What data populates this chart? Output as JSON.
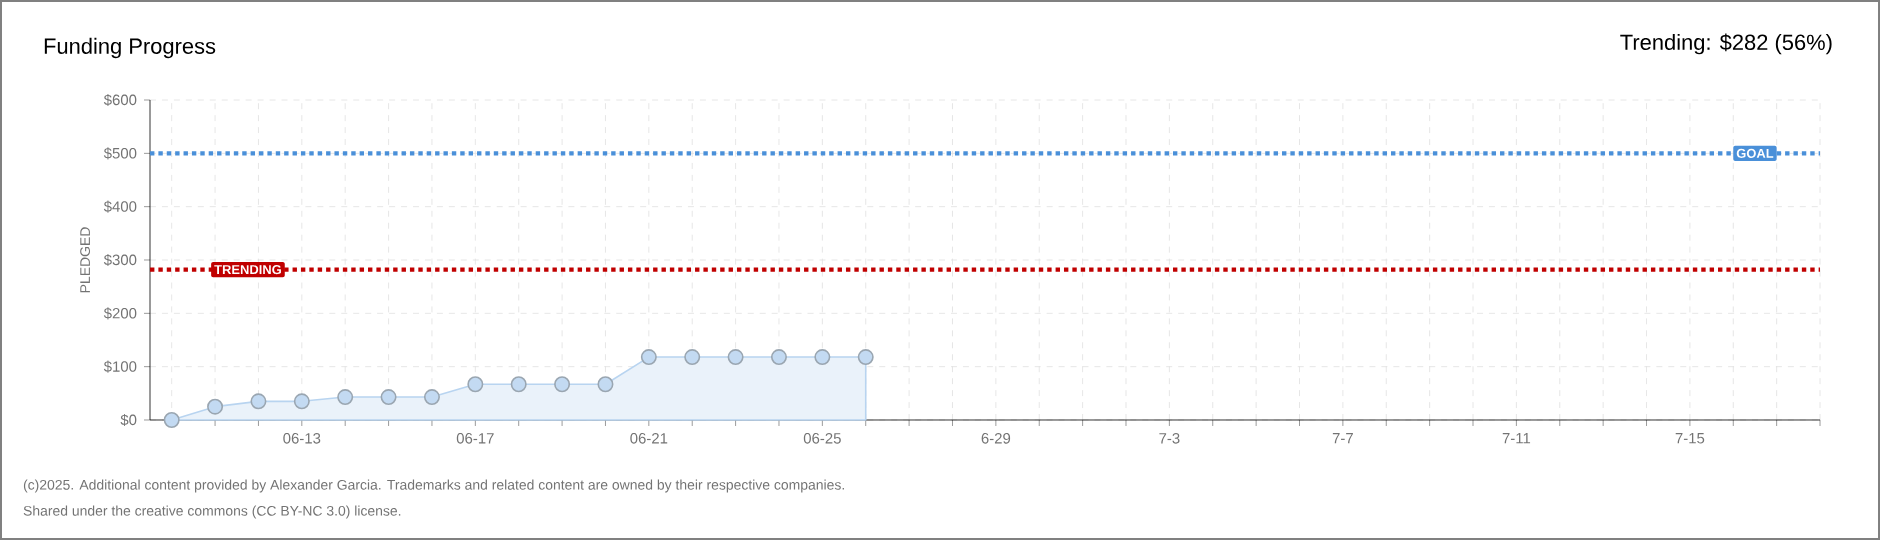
{
  "chart_data": {
    "type": "area",
    "title": "Funding Progress",
    "subtitle": "Trending: $282 (56%)",
    "ylabel": "PLEDGED",
    "categories": [
      null,
      null,
      null,
      "06-13",
      null,
      null,
      null,
      "06-17",
      null,
      null,
      null,
      "06-21",
      null,
      null,
      null,
      "06-25",
      null,
      null,
      null,
      "6-29",
      null,
      null,
      null,
      "7-3",
      null,
      null,
      null,
      "7-7",
      null,
      null,
      null,
      "7-11",
      null,
      null,
      null,
      "7-15",
      null,
      null,
      null
    ],
    "series": [
      {
        "color": "#b8d4f0",
        "values": [
          0,
          25,
          35,
          35,
          43,
          43,
          43,
          67,
          67,
          67,
          67,
          118,
          118,
          118,
          118,
          118,
          118,
          null,
          null,
          null,
          null,
          null,
          null,
          null,
          null,
          null,
          null,
          null,
          null,
          null,
          null,
          null,
          null,
          null,
          null,
          null,
          null,
          null,
          null
        ]
      }
    ],
    "ylim": [
      0,
      600
    ],
    "yticks": [
      {
        "value": 0,
        "label": "$0"
      },
      {
        "value": 100,
        "label": "$100"
      },
      {
        "value": 200,
        "label": "$200"
      },
      {
        "value": 300,
        "label": "$300"
      },
      {
        "value": 400,
        "label": "$400"
      },
      {
        "value": 500,
        "label": "$500"
      },
      {
        "value": 600,
        "label": "$600"
      }
    ],
    "grid": true,
    "marker": "circle",
    "ref_lines": [
      {
        "axis": "y",
        "value": 500,
        "label": "GOAL",
        "color": "#4a90d9",
        "line_style": "dotted"
      },
      {
        "axis": "y",
        "value": 282,
        "label": "TRENDING",
        "color": "#c00000",
        "line_style": "dotted"
      }
    ],
    "annotations": [
      "(c)2025. Additional content provided by Alexander Garcia. Trademarks and related content are owned by their respective companies.",
      "Shared under the creative commons (CC BY-NC 3.0) license."
    ]
  }
}
